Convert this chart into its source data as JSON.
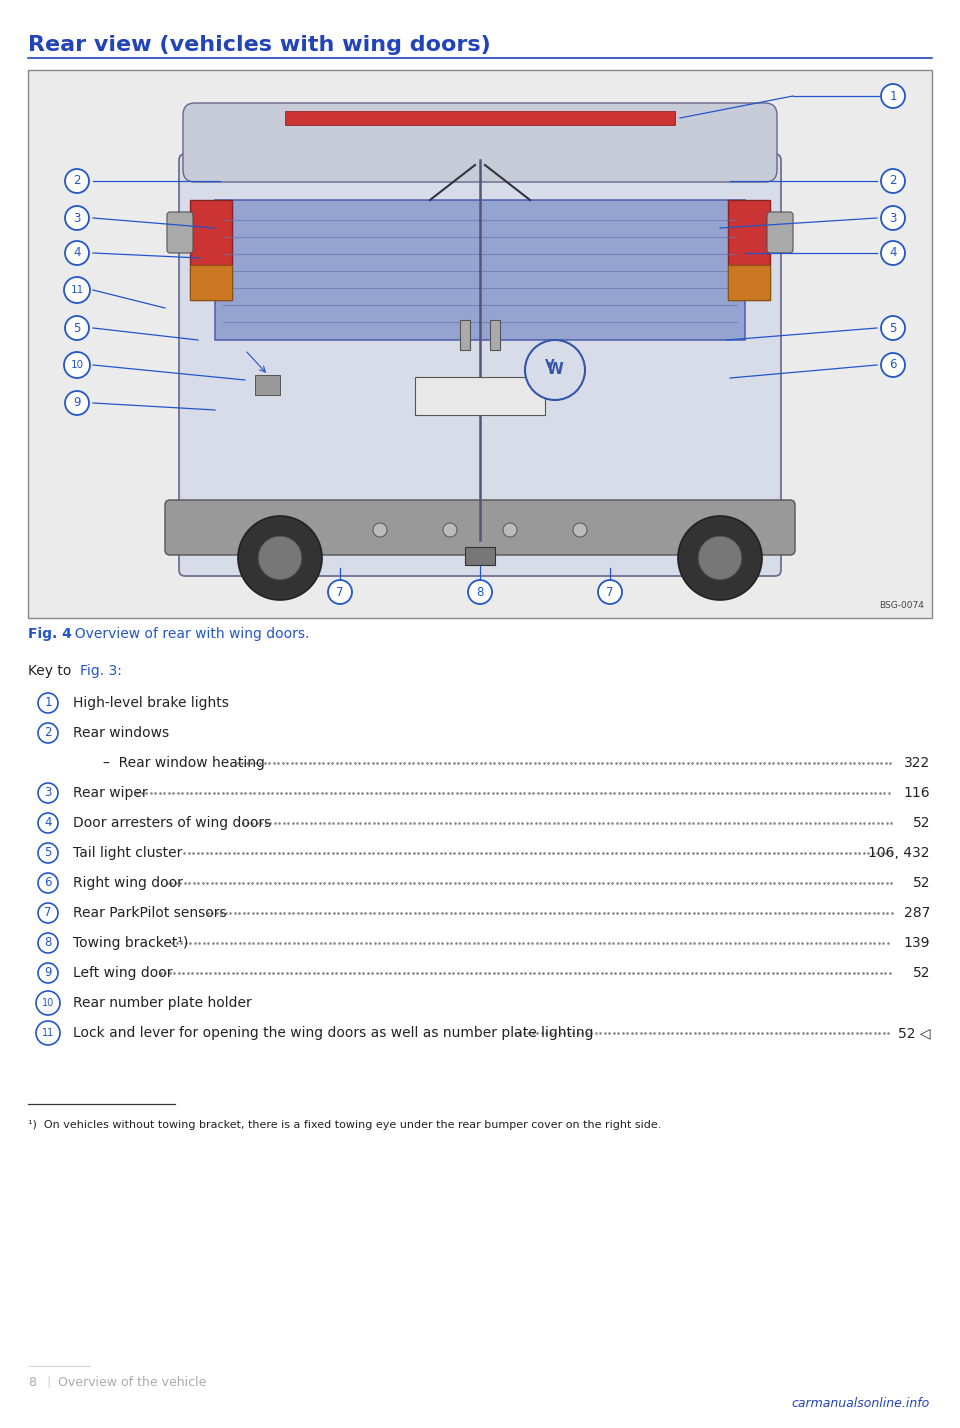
{
  "title": "Rear view (vehicles with wing doors)",
  "title_color": "#2244bb",
  "title_underline_color": "#2244bb",
  "fig_caption_bold": "Fig. 4",
  "fig_caption_rest": "  Overview of rear with wing doors.",
  "fig_caption_color": "#2255cc",
  "key_intro": "Key to ",
  "key_fig_ref": "Fig. 3:",
  "key_fig_ref_color": "#2255cc",
  "background_color": "#ffffff",
  "image_border_color": "#888888",
  "image_bg_color": "#eeeeee",
  "callout_line_color": "#2255cc",
  "entries": [
    {
      "num": "1",
      "text": "High-level brake lights",
      "dots": false,
      "page": ""
    },
    {
      "num": "2",
      "text": "Rear windows",
      "dots": false,
      "page": ""
    },
    {
      "num": "",
      "text": "–  Rear window heating",
      "dots": true,
      "page": "322"
    },
    {
      "num": "3",
      "text": "Rear wiper",
      "dots": true,
      "page": "116"
    },
    {
      "num": "4",
      "text": "Door arresters of wing doors",
      "dots": true,
      "page": "52"
    },
    {
      "num": "5",
      "text": "Tail light cluster",
      "dots": true,
      "page": "106, 432"
    },
    {
      "num": "6",
      "text": "Right wing door",
      "dots": true,
      "page": "52"
    },
    {
      "num": "7",
      "text": "Rear ParkPilot sensors",
      "dots": true,
      "page": "287"
    },
    {
      "num": "8",
      "text": "Towing bracket¹)",
      "dots": true,
      "page": "139"
    },
    {
      "num": "9",
      "text": "Left wing door",
      "dots": true,
      "page": "52"
    },
    {
      "num": "10",
      "text": "Rear number plate holder",
      "dots": false,
      "page": ""
    },
    {
      "num": "11",
      "text": "Lock and lever for opening the wing doors as well as number plate lighting",
      "dots": true,
      "page": "52 ◁"
    }
  ],
  "footnote": "¹)  On vehicles without towing bracket, there is a fixed towing eye under the rear bumper cover on the right side.",
  "page_num": "8",
  "page_section": "Overview of the vehicle",
  "watermark": "carmanualsonline.info",
  "circle_color": "#2255cc",
  "text_color": "#222222",
  "bsg_ref": "BSG-0074"
}
